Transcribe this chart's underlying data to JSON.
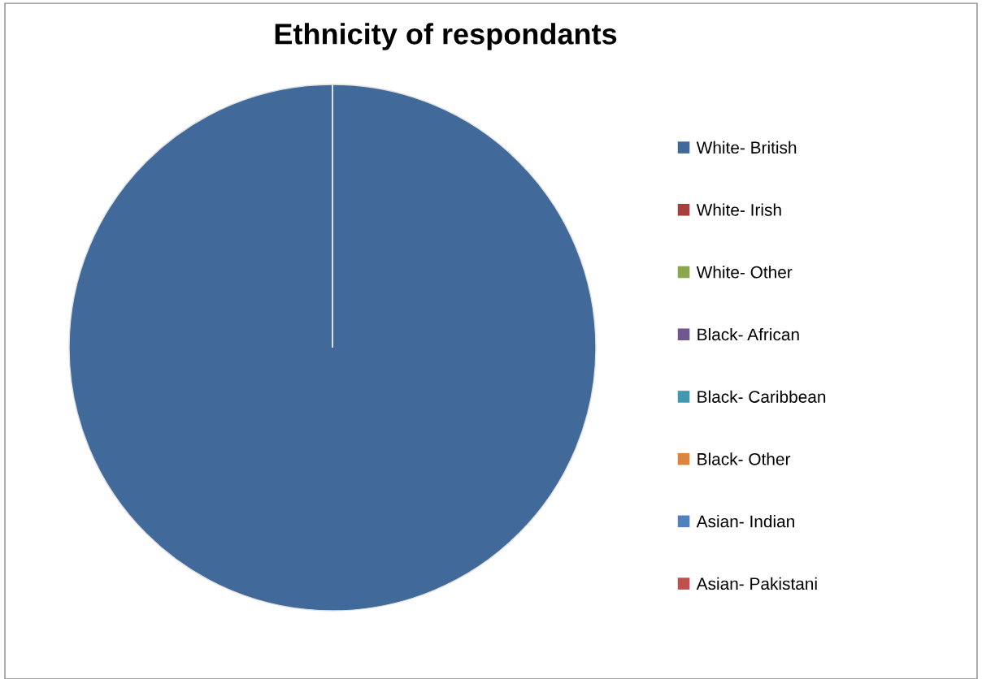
{
  "chart_data": {
    "type": "pie",
    "title": "Ethnicity of respondants",
    "categories": [
      "White- British",
      "White- Irish",
      "White- Other",
      "Black- African",
      "Black- Caribbean",
      "Black- Other",
      "Asian- Indian",
      "Asian- Pakistani"
    ],
    "values": [
      100,
      0,
      0,
      0,
      0,
      0,
      0,
      0
    ],
    "colors": [
      "#416a9b",
      "#a5403d",
      "#8aa64e",
      "#71578f",
      "#4298af",
      "#db843d",
      "#4f81bd",
      "#c0504d"
    ],
    "legend": "right"
  }
}
